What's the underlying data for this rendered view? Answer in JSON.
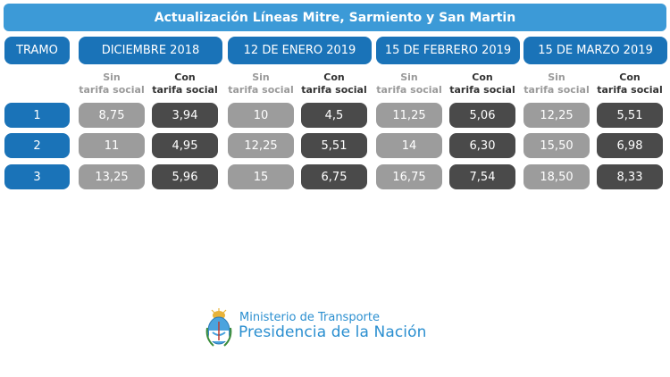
{
  "title": "Actualización Líneas Mitre, Sarmiento y San Martin",
  "tramo_header": "TRAMO",
  "periods": [
    {
      "label": "DICIEMBRE 2018",
      "sin": [
        "8,75",
        "11",
        "13,25"
      ],
      "con": [
        "3,94",
        "4,95",
        "5,96"
      ]
    },
    {
      "label": "12 DE ENERO 2019",
      "sin": [
        "10",
        "12,25",
        "15"
      ],
      "con": [
        "4,5",
        "5,51",
        "6,75"
      ]
    },
    {
      "label": "15 DE FEBRERO 2019",
      "sin": [
        "11,25",
        "14",
        "16,75"
      ],
      "con": [
        "5,06",
        "6,30",
        "7,54"
      ]
    },
    {
      "label": "15 DE MARZO 2019",
      "sin": [
        "12,25",
        "15,50",
        "18,50"
      ],
      "con": [
        "5,51",
        "6,98",
        "8,33"
      ]
    }
  ],
  "sub_headers": {
    "sin": {
      "line1": "Sin",
      "line2": "tarifa social"
    },
    "con": {
      "line1": "Con",
      "line2": "tarifa social"
    }
  },
  "tramos": [
    "1",
    "2",
    "3"
  ],
  "logo": {
    "ministry": "Ministerio de Transporte",
    "presidencia": "Presidencia de la Nación",
    "icon": "argentina-coat-of-arms-icon"
  },
  "colors": {
    "title_bar": "#3c9ad7",
    "header_blue": "#1a73b8",
    "sin_cell": "#9c9c9c",
    "con_cell": "#4a4a4a",
    "logo_text": "#2b8fd0"
  }
}
